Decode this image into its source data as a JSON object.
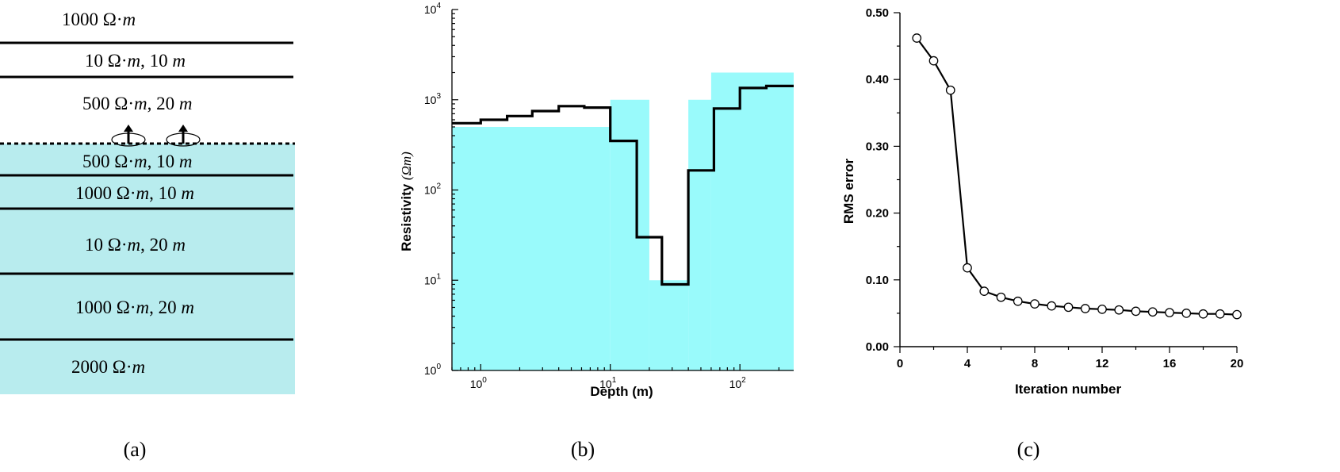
{
  "colors": {
    "layer_fill": "#b8ecee",
    "true_model_fill": "#99fafb",
    "inverted_line": "#000000",
    "marker_fill": "#ffffff"
  },
  "panel_a": {
    "caption": "(a)",
    "layers": [
      {
        "label_main": "1000 Ω·",
        "unit": "m",
        "thickness": "",
        "shaded": false
      },
      {
        "label_main": "10 Ω·",
        "unit": "m",
        "thickness": "10",
        "shaded": false
      },
      {
        "label_main": "500 Ω·",
        "unit": "m",
        "thickness": "20",
        "shaded": false
      },
      {
        "label_main": "500 Ω·",
        "unit": "m",
        "thickness": "10",
        "shaded": true
      },
      {
        "label_main": "1000 Ω·",
        "unit": "m",
        "thickness": "10",
        "shaded": true
      },
      {
        "label_main": "10 Ω·",
        "unit": "m",
        "thickness": "20",
        "shaded": true
      },
      {
        "label_main": "1000 Ω·",
        "unit": "m",
        "thickness": "20",
        "shaded": true
      },
      {
        "label_main": "2000 Ω·",
        "unit": "m",
        "thickness": "",
        "shaded": true
      }
    ],
    "thickness_unit": "m"
  },
  "chart_data": [
    {
      "panel": "(b)",
      "type": "area",
      "xlabel": "Depth (m)",
      "ylabel": "Resistivity",
      "ylabel_unit": "(Ωm)",
      "x_scale": "log",
      "y_scale": "log",
      "xlim": [
        0.6,
        260
      ],
      "ylim": [
        1,
        10000
      ],
      "x_ticks": [
        {
          "base": "10",
          "exp": "0"
        },
        {
          "base": "10",
          "exp": "1"
        },
        {
          "base": "10",
          "exp": "2"
        }
      ],
      "y_ticks": [
        {
          "base": "10",
          "exp": "0"
        },
        {
          "base": "10",
          "exp": "1"
        },
        {
          "base": "10",
          "exp": "2"
        },
        {
          "base": "10",
          "exp": "3"
        },
        {
          "base": "10",
          "exp": "4"
        }
      ],
      "series": [
        {
          "style": "filled-steps",
          "steps": [
            {
              "x0": 0.6,
              "x1": 10,
              "y": 500
            },
            {
              "x0": 10,
              "x1": 20,
              "y": 1000
            },
            {
              "x0": 20,
              "x1": 40,
              "y": 10
            },
            {
              "x0": 40,
              "x1": 60,
              "y": 1000
            },
            {
              "x0": 60,
              "x1": 260,
              "y": 2000
            }
          ]
        },
        {
          "style": "step-line",
          "steps": [
            {
              "x0": 0.6,
              "x1": 1.0,
              "y": 550
            },
            {
              "x0": 1.0,
              "x1": 1.6,
              "y": 600
            },
            {
              "x0": 1.6,
              "x1": 2.5,
              "y": 660
            },
            {
              "x0": 2.5,
              "x1": 4.0,
              "y": 750
            },
            {
              "x0": 4.0,
              "x1": 6.3,
              "y": 850
            },
            {
              "x0": 6.3,
              "x1": 10,
              "y": 820
            },
            {
              "x0": 10,
              "x1": 16,
              "y": 350
            },
            {
              "x0": 16,
              "x1": 25,
              "y": 30
            },
            {
              "x0": 25,
              "x1": 40,
              "y": 9
            },
            {
              "x0": 40,
              "x1": 63,
              "y": 165
            },
            {
              "x0": 63,
              "x1": 100,
              "y": 800
            },
            {
              "x0": 100,
              "x1": 160,
              "y": 1350
            },
            {
              "x0": 160,
              "x1": 260,
              "y": 1420
            }
          ]
        }
      ]
    },
    {
      "panel": "(c)",
      "type": "line",
      "xlabel": "Iteration number",
      "ylabel": "RMS error",
      "xlim": [
        0,
        20
      ],
      "ylim": [
        0,
        0.5
      ],
      "x_tick_labels": [
        "0",
        "4",
        "8",
        "12",
        "16",
        "20"
      ],
      "y_tick_labels": [
        "0.00",
        "0.10",
        "0.20",
        "0.30",
        "0.40",
        "0.50"
      ],
      "series": [
        {
          "x": [
            1,
            2,
            3,
            4,
            5,
            6,
            7,
            8,
            9,
            10,
            11,
            12,
            13,
            14,
            15,
            16,
            17,
            18,
            19,
            20
          ],
          "values": [
            0.462,
            0.428,
            0.384,
            0.118,
            0.083,
            0.074,
            0.068,
            0.064,
            0.061,
            0.059,
            0.057,
            0.056,
            0.055,
            0.053,
            0.052,
            0.051,
            0.05,
            0.049,
            0.049,
            0.048
          ]
        }
      ]
    }
  ]
}
